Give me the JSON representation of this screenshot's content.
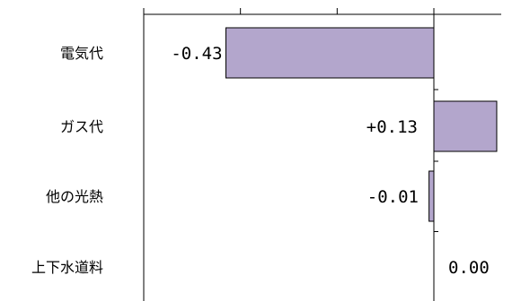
{
  "chart_data": {
    "type": "bar",
    "orientation": "horizontal",
    "categories": [
      "電気代",
      "ガス代",
      "他の光熱",
      "上下水道料"
    ],
    "values": [
      -0.43,
      0.13,
      -0.01,
      0.0
    ],
    "value_labels": [
      "-0.43",
      "+0.13",
      "-0.01",
      "0.00"
    ],
    "xlim": [
      -0.6,
      0.13
    ],
    "major_ticks": [
      -0.6,
      -0.4,
      -0.2,
      0.0
    ],
    "grid": false,
    "colors": {
      "bar_fill": "#b3a6cc",
      "bar_stroke": "#000000",
      "axis": "#000000"
    }
  }
}
